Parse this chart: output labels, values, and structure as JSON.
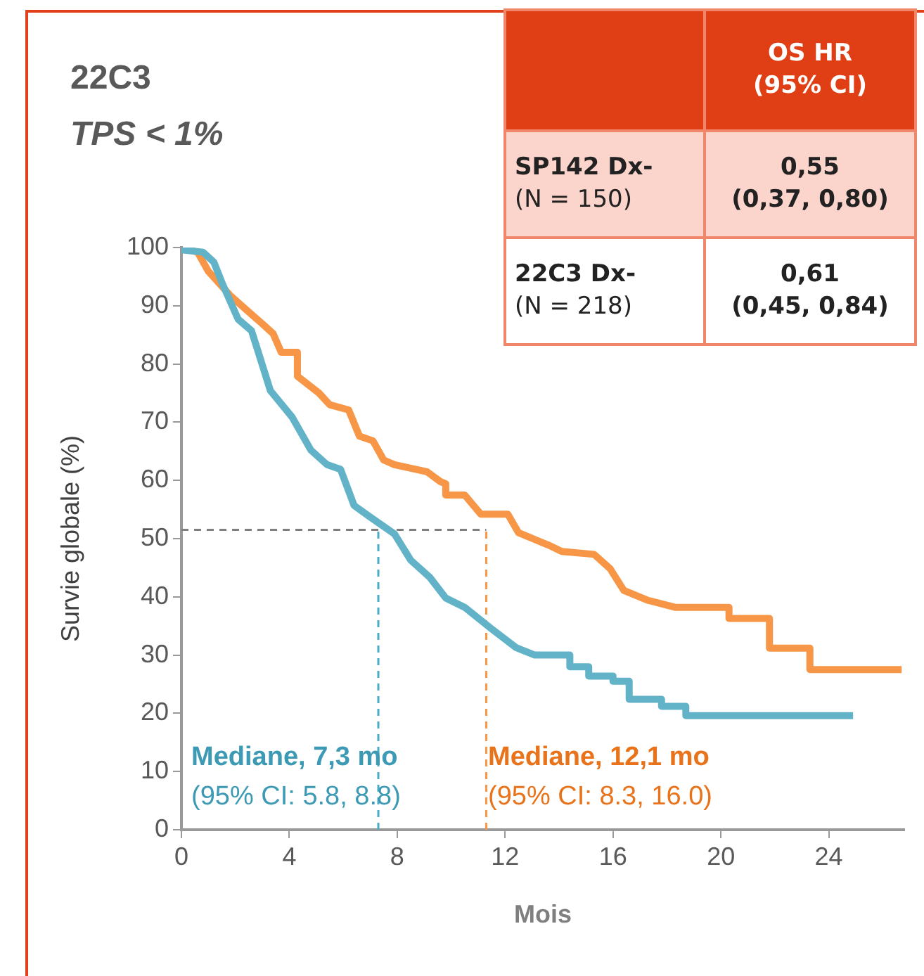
{
  "chart_data": {
    "type": "line",
    "title": "22C3",
    "subtitle": "TPS < 1%",
    "xlabel": "Mois",
    "ylabel": "Survie globale (%)",
    "xlim": [
      0,
      26.8
    ],
    "xticks": [
      0,
      4,
      8,
      12,
      16,
      20,
      24
    ],
    "ylim": [
      0,
      100
    ],
    "yticks": [
      0,
      10,
      20,
      30,
      40,
      50,
      60,
      70,
      80,
      90,
      100
    ],
    "marker": "none",
    "series": [
      {
        "color": "#63b3c8",
        "x": [
          0,
          0.8,
          1.2,
          1.5,
          2.1,
          2.6,
          3.3,
          4.1,
          4.8,
          5.4,
          5.9,
          6.4,
          7.0,
          7.9,
          8.5,
          9.2,
          9.8,
          10.5,
          11.5,
          12.4,
          13.1,
          14.4,
          14.4,
          15.1,
          15.1,
          16.0,
          16.0,
          16.6,
          16.6,
          17.8,
          17.8,
          18.7,
          18.7,
          24.9
        ],
        "values": [
          99.6,
          99.2,
          97.5,
          94,
          87.7,
          85.7,
          75.4,
          70.9,
          65.2,
          62.7,
          61.9,
          55.7,
          53.7,
          50.8,
          46.3,
          43.4,
          39.8,
          38.2,
          34.5,
          31.3,
          30,
          30,
          28,
          28,
          26.4,
          26.4,
          25.5,
          25.5,
          22.4,
          22.4,
          21.2,
          21.2,
          19.6,
          19.6
        ]
      },
      {
        "color": "#f79646",
        "x": [
          0,
          0.6,
          1.0,
          1.8,
          2.7,
          3.0,
          3.4,
          3.7,
          4.3,
          4.3,
          5.1,
          5.5,
          6.2,
          6.6,
          7.1,
          7.5,
          7.9,
          9.1,
          9.6,
          9.8,
          9.8,
          10.5,
          11.1,
          12.1,
          12.5,
          13.6,
          14.1,
          15.3,
          15.9,
          16.4,
          17.3,
          18.3,
          20.3,
          20.3,
          21.8,
          21.8,
          23.3,
          23.3,
          26.7
        ],
        "values": [
          100,
          99.2,
          95.9,
          91.8,
          88.1,
          86.9,
          85.2,
          82,
          82,
          77.9,
          75,
          73,
          72.1,
          67.6,
          66.8,
          63.5,
          62.7,
          61.5,
          59.8,
          59.4,
          57.5,
          57.5,
          54.2,
          54.2,
          51,
          48.9,
          47.8,
          47.3,
          44.8,
          41.1,
          39.4,
          38.2,
          38.2,
          36.3,
          36.3,
          31.2,
          31.2,
          27.5,
          27.5
        ]
      }
    ],
    "ref_lines": [
      {
        "axis": "y",
        "value": 51.5,
        "color": "#7f7f7f",
        "line_style": "dashed"
      },
      {
        "axis": "x",
        "value": 7.3,
        "color": "#4bacc6",
        "line_style": "dashed"
      },
      {
        "axis": "x",
        "value": 11.3,
        "color": "#f79646",
        "line_style": "dashed"
      }
    ],
    "annotations": [
      "OS HR\n(95% CI)",
      "SP142 Dx-\n(N = 150)",
      "0,55\n(0,37, 0,80)",
      "22C3 Dx-\n(N = 218)",
      "0,61\n(0,45, 0,84)",
      "Mediane, 7,3 mo",
      "(95% CI: 5.8, 8.8)",
      "Mediane, 12,1 mo",
      "(95% CI: 8.3, 16.0)"
    ]
  }
}
